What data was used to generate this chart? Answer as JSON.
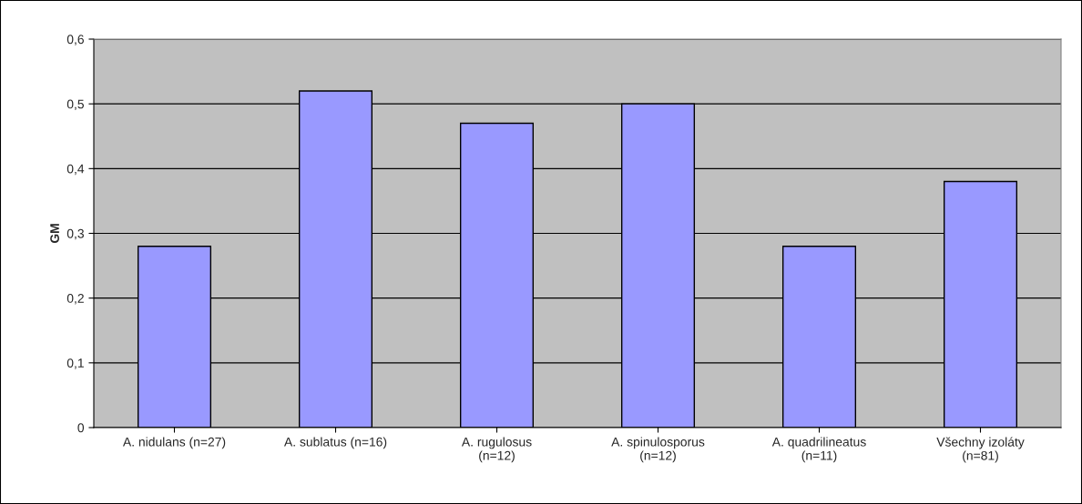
{
  "chart_data": {
    "type": "bar",
    "ylabel": "GM",
    "categories": [
      "A. nidulans (n=27)",
      "A. sublatus (n=16)",
      "A. rugulosus\n(n=12)",
      "A. spinulosporus\n(n=12)",
      "A. quadrilineatus\n(n=11)",
      "Všechny izoláty\n(n=81)"
    ],
    "values": [
      0.28,
      0.52,
      0.47,
      0.5,
      0.28,
      0.38
    ],
    "color": "#9999ff",
    "ylim": [
      0,
      0.6
    ],
    "yticks": [
      {
        "value": 0,
        "label": "0"
      },
      {
        "value": 0.1,
        "label": "0,1"
      },
      {
        "value": 0.2,
        "label": "0,2"
      },
      {
        "value": 0.3,
        "label": "0,3"
      },
      {
        "value": 0.4,
        "label": "0,4"
      },
      {
        "value": 0.5,
        "label": "0,5"
      },
      {
        "value": 0.6,
        "label": "0,6"
      }
    ],
    "grid": "y",
    "legend": false
  }
}
